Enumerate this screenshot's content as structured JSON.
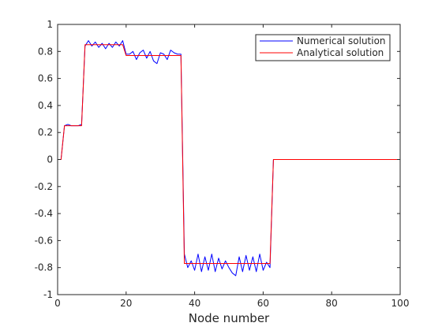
{
  "chart_data": {
    "type": "line",
    "title": "",
    "xlabel": "Node number",
    "ylabel": "",
    "xlim": [
      0,
      100
    ],
    "ylim": [
      -1,
      1
    ],
    "grid": false,
    "legend_position": "top-right",
    "x_ticks": [
      0,
      20,
      40,
      60,
      80,
      100
    ],
    "x_tick_labels": [
      "0",
      "20",
      "40",
      "60",
      "80",
      "100"
    ],
    "y_ticks": [
      -1,
      -0.8,
      -0.6,
      -0.4,
      -0.2,
      0,
      0.2,
      0.4,
      0.6,
      0.8,
      1
    ],
    "y_tick_labels": [
      "-1",
      "-0.8",
      "-0.6",
      "-0.4",
      "-0.2",
      "0",
      "0.2",
      "0.4",
      "0.6",
      "0.8",
      "1"
    ],
    "series": [
      {
        "name": "Numerical solution",
        "color": "#0000ff",
        "x": [
          0,
          1,
          2,
          3,
          4,
          5,
          6,
          7,
          8,
          9,
          10,
          11,
          12,
          13,
          14,
          15,
          16,
          17,
          18,
          19,
          20,
          21,
          22,
          23,
          24,
          25,
          26,
          27,
          28,
          29,
          30,
          31,
          32,
          33,
          34,
          35,
          36,
          37,
          38,
          39,
          40,
          41,
          42,
          43,
          44,
          45,
          46,
          47,
          48,
          49,
          50,
          51,
          52,
          53,
          54,
          55,
          56,
          57,
          58,
          59,
          60,
          61,
          62,
          63,
          64,
          65,
          66,
          67,
          68,
          69,
          70,
          71,
          72,
          73,
          74,
          75,
          76,
          77,
          78,
          79,
          80,
          81,
          82,
          83,
          84,
          85,
          86,
          87,
          88,
          89,
          90,
          91,
          92,
          93,
          94,
          95,
          96,
          97,
          98,
          99,
          100
        ],
        "y": [
          0,
          0,
          0.25,
          0.26,
          0.25,
          0.25,
          0.25,
          0.26,
          0.84,
          0.88,
          0.84,
          0.87,
          0.83,
          0.86,
          0.82,
          0.86,
          0.83,
          0.87,
          0.84,
          0.88,
          0.78,
          0.78,
          0.8,
          0.74,
          0.79,
          0.81,
          0.75,
          0.8,
          0.73,
          0.71,
          0.79,
          0.78,
          0.74,
          0.81,
          0.79,
          0.78,
          0.78,
          -0.7,
          -0.8,
          -0.75,
          -0.82,
          -0.7,
          -0.83,
          -0.72,
          -0.82,
          -0.7,
          -0.83,
          -0.73,
          -0.81,
          -0.75,
          -0.8,
          -0.84,
          -0.86,
          -0.72,
          -0.83,
          -0.71,
          -0.82,
          -0.72,
          -0.83,
          -0.7,
          -0.82,
          -0.76,
          -0.8,
          0,
          0,
          0,
          0,
          0,
          0,
          0,
          0,
          0,
          0,
          0,
          0,
          0,
          0,
          0,
          0,
          0,
          0,
          0,
          0,
          0,
          0,
          0,
          0,
          0,
          0,
          0,
          0,
          0,
          0,
          0,
          0,
          0,
          0,
          0,
          0,
          0,
          0
        ]
      },
      {
        "name": "Analytical solution",
        "color": "#ff0000",
        "x": [
          0,
          1,
          2,
          3,
          4,
          5,
          6,
          7,
          8,
          9,
          10,
          11,
          12,
          13,
          14,
          15,
          16,
          17,
          18,
          19,
          20,
          21,
          22,
          23,
          24,
          25,
          26,
          27,
          28,
          29,
          30,
          31,
          32,
          33,
          34,
          35,
          36,
          37,
          38,
          39,
          40,
          41,
          42,
          43,
          44,
          45,
          46,
          47,
          48,
          49,
          50,
          51,
          52,
          53,
          54,
          55,
          56,
          57,
          58,
          59,
          60,
          61,
          62,
          63,
          64,
          65,
          66,
          67,
          68,
          69,
          70,
          71,
          72,
          73,
          74,
          75,
          76,
          77,
          78,
          79,
          80,
          81,
          82,
          83,
          84,
          85,
          86,
          87,
          88,
          89,
          90,
          91,
          92,
          93,
          94,
          95,
          96,
          97,
          98,
          99,
          100
        ],
        "y": [
          0,
          0,
          0.25,
          0.25,
          0.25,
          0.25,
          0.25,
          0.25,
          0.85,
          0.85,
          0.85,
          0.85,
          0.85,
          0.85,
          0.85,
          0.85,
          0.85,
          0.85,
          0.85,
          0.85,
          0.77,
          0.77,
          0.77,
          0.77,
          0.77,
          0.77,
          0.77,
          0.77,
          0.77,
          0.77,
          0.77,
          0.77,
          0.77,
          0.77,
          0.77,
          0.77,
          0.77,
          -0.77,
          -0.77,
          -0.77,
          -0.77,
          -0.77,
          -0.77,
          -0.77,
          -0.77,
          -0.77,
          -0.77,
          -0.77,
          -0.77,
          -0.77,
          -0.77,
          -0.77,
          -0.77,
          -0.77,
          -0.77,
          -0.77,
          -0.77,
          -0.77,
          -0.77,
          -0.77,
          -0.77,
          -0.77,
          -0.77,
          0,
          0,
          0,
          0,
          0,
          0,
          0,
          0,
          0,
          0,
          0,
          0,
          0,
          0,
          0,
          0,
          0,
          0,
          0,
          0,
          0,
          0,
          0,
          0,
          0,
          0,
          0,
          0,
          0,
          0,
          0,
          0,
          0,
          0,
          0,
          0,
          0,
          0
        ]
      }
    ]
  }
}
